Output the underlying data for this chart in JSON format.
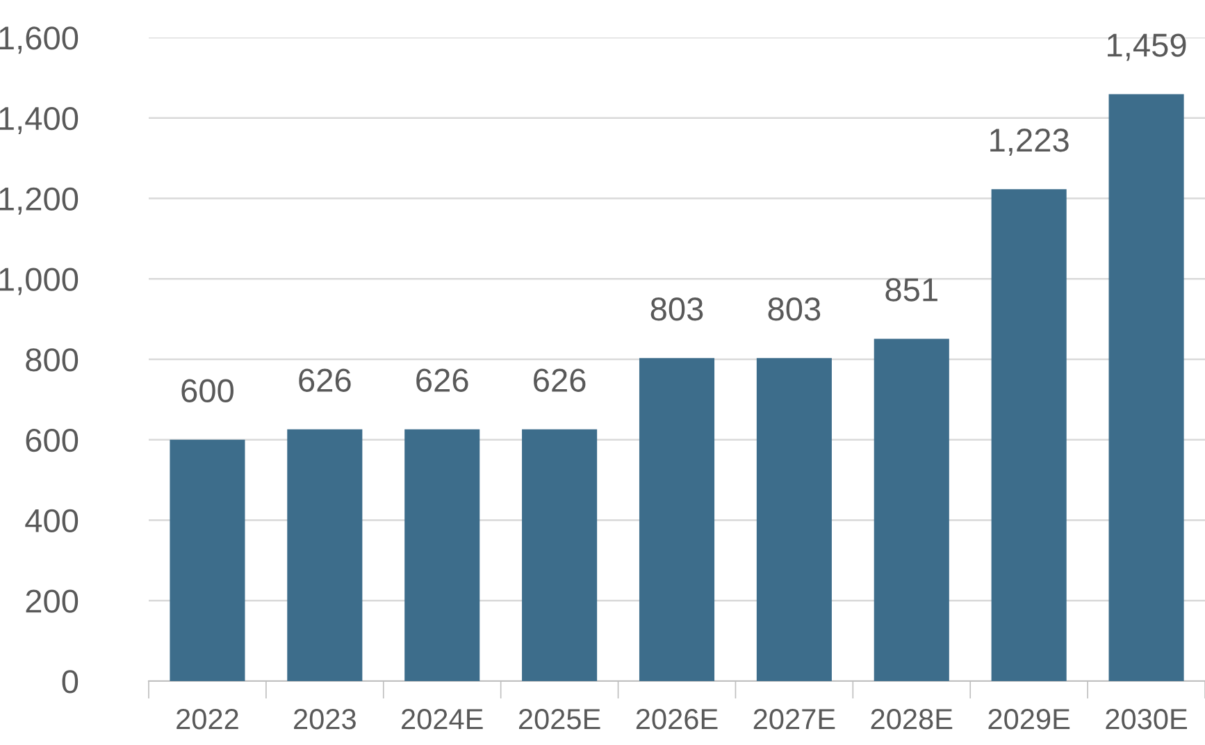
{
  "chart_data": {
    "type": "bar",
    "categories": [
      "2022",
      "2023",
      "2024E",
      "2025E",
      "2026E",
      "2027E",
      "2028E",
      "2029E",
      "2030E"
    ],
    "values": [
      600,
      626,
      626,
      626,
      803,
      803,
      851,
      1223,
      1459
    ],
    "color": "#3d6d8b",
    "value_labels": [
      "600",
      "626",
      "626",
      "626",
      "803",
      "803",
      "851",
      "1,223",
      "1,459"
    ],
    "ylim": [
      0,
      1600
    ],
    "yticks": [
      {
        "value": 0,
        "label": "0"
      },
      {
        "value": 200,
        "label": "200"
      },
      {
        "value": 400,
        "label": "400"
      },
      {
        "value": 600,
        "label": "600"
      },
      {
        "value": 800,
        "label": "800"
      },
      {
        "value": 1000,
        "label": "1,000"
      },
      {
        "value": 1200,
        "label": "1,200"
      },
      {
        "value": 1400,
        "label": "1,400"
      },
      {
        "value": 1600,
        "label": "1,600"
      }
    ],
    "grid": "y",
    "legend": false
  }
}
